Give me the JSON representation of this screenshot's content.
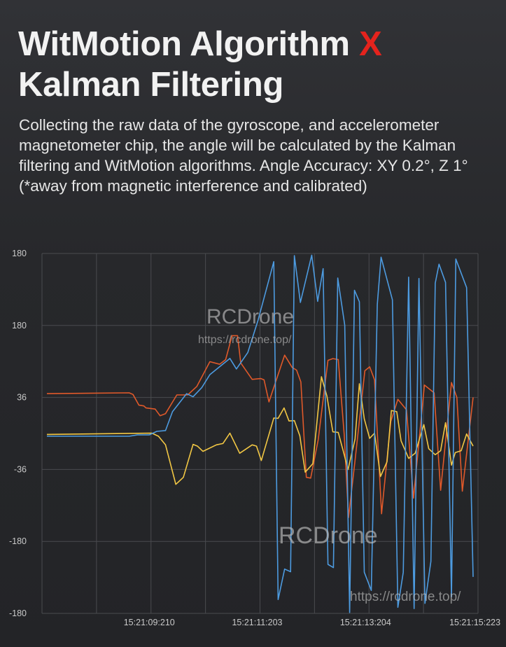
{
  "header": {
    "title_line1": "WitMotion Algorithm ",
    "title_x": "X",
    "title_line2": "Kalman Filtering",
    "description": "Collecting the raw data of the gyroscope, and accelerometer magnetometer chip, the angle will be calculated by the Kalman filtering and WitMotion algorithms. Angle Accuracy: XY 0.2°, Z 1°(*away from magnetic interference and calibrated)"
  },
  "colors": {
    "background": "#2a2b2e",
    "title_accent": "#e4231d",
    "series_orange": "#e0592a",
    "series_yellow": "#f2c744",
    "series_blue": "#4d9be0",
    "grid": "#4a4b4f"
  },
  "watermarks": {
    "brand": "RCDrone",
    "url": "https://rcdrone.top/"
  },
  "chart_data": {
    "type": "line",
    "title": "",
    "xlabel": "",
    "ylabel": "",
    "grid": true,
    "legend": "none",
    "y_tick_labels": [
      "180",
      "180",
      "36",
      "-36",
      "-180",
      "-180"
    ],
    "ylim": [
      -180,
      180
    ],
    "x_tick_labels": [
      "15:21:09:210",
      "15:21:11:203",
      "15:21:13:204",
      "15:21:15:223"
    ],
    "x_ticks_seconds": [
      9.21,
      11.203,
      13.204,
      15.223
    ],
    "xlim_seconds": [
      7.23,
      15.28
    ],
    "series": [
      {
        "color": "#e0592a",
        "points": [
          [
            7.32,
            39.8
          ],
          [
            8.84,
            40.6
          ],
          [
            8.91,
            39
          ],
          [
            9.02,
            28.3
          ],
          [
            9.11,
            27.5
          ],
          [
            9.15,
            25.5
          ],
          [
            9.32,
            24.4
          ],
          [
            9.41,
            17.7
          ],
          [
            9.51,
            19.8
          ],
          [
            9.72,
            38.5
          ],
          [
            9.92,
            38.5
          ],
          [
            10.09,
            47.1
          ],
          [
            10.33,
            71.8
          ],
          [
            10.51,
            69.2
          ],
          [
            10.62,
            73.8
          ],
          [
            10.74,
            97.8
          ],
          [
            10.84,
            97.8
          ],
          [
            10.9,
            70.5
          ],
          [
            11.11,
            54.1
          ],
          [
            11.27,
            54.9
          ],
          [
            11.33,
            53.6
          ],
          [
            11.42,
            31.5
          ],
          [
            11.58,
            57.5
          ],
          [
            11.71,
            78.3
          ],
          [
            11.85,
            66
          ],
          [
            11.93,
            63.4
          ],
          [
            12.01,
            51.5
          ],
          [
            12.11,
            -43.9
          ],
          [
            12.19,
            -44.7
          ],
          [
            12.33,
            -6.2
          ],
          [
            12.51,
            73.1
          ],
          [
            12.6,
            74.9
          ],
          [
            12.7,
            73.9
          ],
          [
            12.81,
            -1
          ],
          [
            12.89,
            -84.2
          ],
          [
            13.01,
            -27.1
          ],
          [
            13.19,
            62.7
          ],
          [
            13.28,
            66.6
          ],
          [
            13.37,
            53.6
          ],
          [
            13.5,
            -80.3
          ],
          [
            13.67,
            12
          ],
          [
            13.8,
            34.1
          ],
          [
            13.96,
            23.7
          ],
          [
            14.09,
            -64.7
          ],
          [
            14.29,
            48.4
          ],
          [
            14.47,
            40.6
          ],
          [
            14.59,
            -56.9
          ],
          [
            14.79,
            50.9
          ],
          [
            14.89,
            35.9
          ],
          [
            14.99,
            -57.7
          ],
          [
            15.19,
            36.1
          ]
        ]
      },
      {
        "color": "#f2c744",
        "points": [
          [
            7.32,
            -1
          ],
          [
            9.26,
            0.3
          ],
          [
            9.38,
            -2.8
          ],
          [
            9.51,
            -11.4
          ],
          [
            9.7,
            -50.9
          ],
          [
            9.84,
            -43.9
          ],
          [
            10.02,
            -10.9
          ],
          [
            10.1,
            -12.7
          ],
          [
            10.2,
            -17.9
          ],
          [
            10.45,
            -11.4
          ],
          [
            10.57,
            -10.1
          ],
          [
            10.7,
            0.3
          ],
          [
            10.88,
            -19.8
          ],
          [
            11.11,
            -11.4
          ],
          [
            11.19,
            -12.7
          ],
          [
            11.28,
            -27.1
          ],
          [
            11.51,
            15.4
          ],
          [
            11.59,
            15.1
          ],
          [
            11.7,
            25.5
          ],
          [
            11.79,
            12.5
          ],
          [
            11.89,
            12.8
          ],
          [
            11.99,
            -2.3
          ],
          [
            12.09,
            -38.7
          ],
          [
            12.23,
            -30.2
          ],
          [
            12.39,
            56.7
          ],
          [
            12.49,
            37.4
          ],
          [
            12.6,
            1.6
          ],
          [
            12.7,
            1
          ],
          [
            12.79,
            -17.2
          ],
          [
            12.88,
            -36.1
          ],
          [
            13.01,
            -5.7
          ],
          [
            13.09,
            49.7
          ],
          [
            13.18,
            14.6
          ],
          [
            13.28,
            -4.9
          ],
          [
            13.37,
            0.3
          ],
          [
            13.48,
            -43.1
          ],
          [
            13.6,
            -28.3
          ],
          [
            13.68,
            22.9
          ],
          [
            13.78,
            21.8
          ],
          [
            13.86,
            -7.5
          ],
          [
            14,
            -24.9
          ],
          [
            14.12,
            -19.8
          ],
          [
            14.28,
            8.8
          ],
          [
            14.37,
            -15.3
          ],
          [
            14.49,
            -21.3
          ],
          [
            14.59,
            -17.2
          ],
          [
            14.68,
            10.7
          ],
          [
            14.79,
            -31.7
          ],
          [
            14.86,
            -19.2
          ],
          [
            14.97,
            -17.2
          ],
          [
            15.07,
            -0.5
          ],
          [
            15.19,
            -12.7
          ]
        ]
      },
      {
        "color": "#4d9be0",
        "points": [
          [
            7.32,
            -2.8
          ],
          [
            8.84,
            -2.8
          ],
          [
            8.99,
            -1.5
          ],
          [
            9.21,
            -1.5
          ],
          [
            9.35,
            2.1
          ],
          [
            9.51,
            2.9
          ],
          [
            9.64,
            21.8
          ],
          [
            9.9,
            39.8
          ],
          [
            10.02,
            36.7
          ],
          [
            10.18,
            45.8
          ],
          [
            10.33,
            58.8
          ],
          [
            10.7,
            75
          ],
          [
            10.82,
            64.5
          ],
          [
            11.03,
            81
          ],
          [
            11.22,
            113.4
          ],
          [
            11.51,
            171.8
          ],
          [
            11.59,
            -166.1
          ],
          [
            11.71,
            -135.7
          ],
          [
            11.82,
            -138.3
          ],
          [
            11.89,
            177.8
          ],
          [
            12,
            131
          ],
          [
            12.21,
            178.3
          ],
          [
            12.32,
            132.1
          ],
          [
            12.42,
            164.8
          ],
          [
            12.51,
            -131
          ],
          [
            12.61,
            -134.2
          ],
          [
            12.69,
            155.5
          ],
          [
            12.82,
            108.2
          ],
          [
            12.91,
            -179.1
          ],
          [
            13,
            143.2
          ],
          [
            13.09,
            131.6
          ],
          [
            13.18,
            -138.8
          ],
          [
            13.31,
            -157
          ],
          [
            13.42,
            129
          ],
          [
            13.49,
            176.3
          ],
          [
            13.7,
            133.6
          ],
          [
            13.8,
            -173.9
          ],
          [
            13.9,
            -138.8
          ],
          [
            14,
            156.3
          ],
          [
            14.1,
            -175.2
          ],
          [
            14.19,
            155
          ],
          [
            14.3,
            -170
          ],
          [
            14.41,
            -127.9
          ],
          [
            14.49,
            150.3
          ],
          [
            14.56,
            169.3
          ],
          [
            14.68,
            151.1
          ],
          [
            14.79,
            -163.5
          ],
          [
            14.87,
            174.5
          ],
          [
            15.07,
            145.9
          ],
          [
            15.19,
            -143.5
          ]
        ]
      }
    ]
  }
}
